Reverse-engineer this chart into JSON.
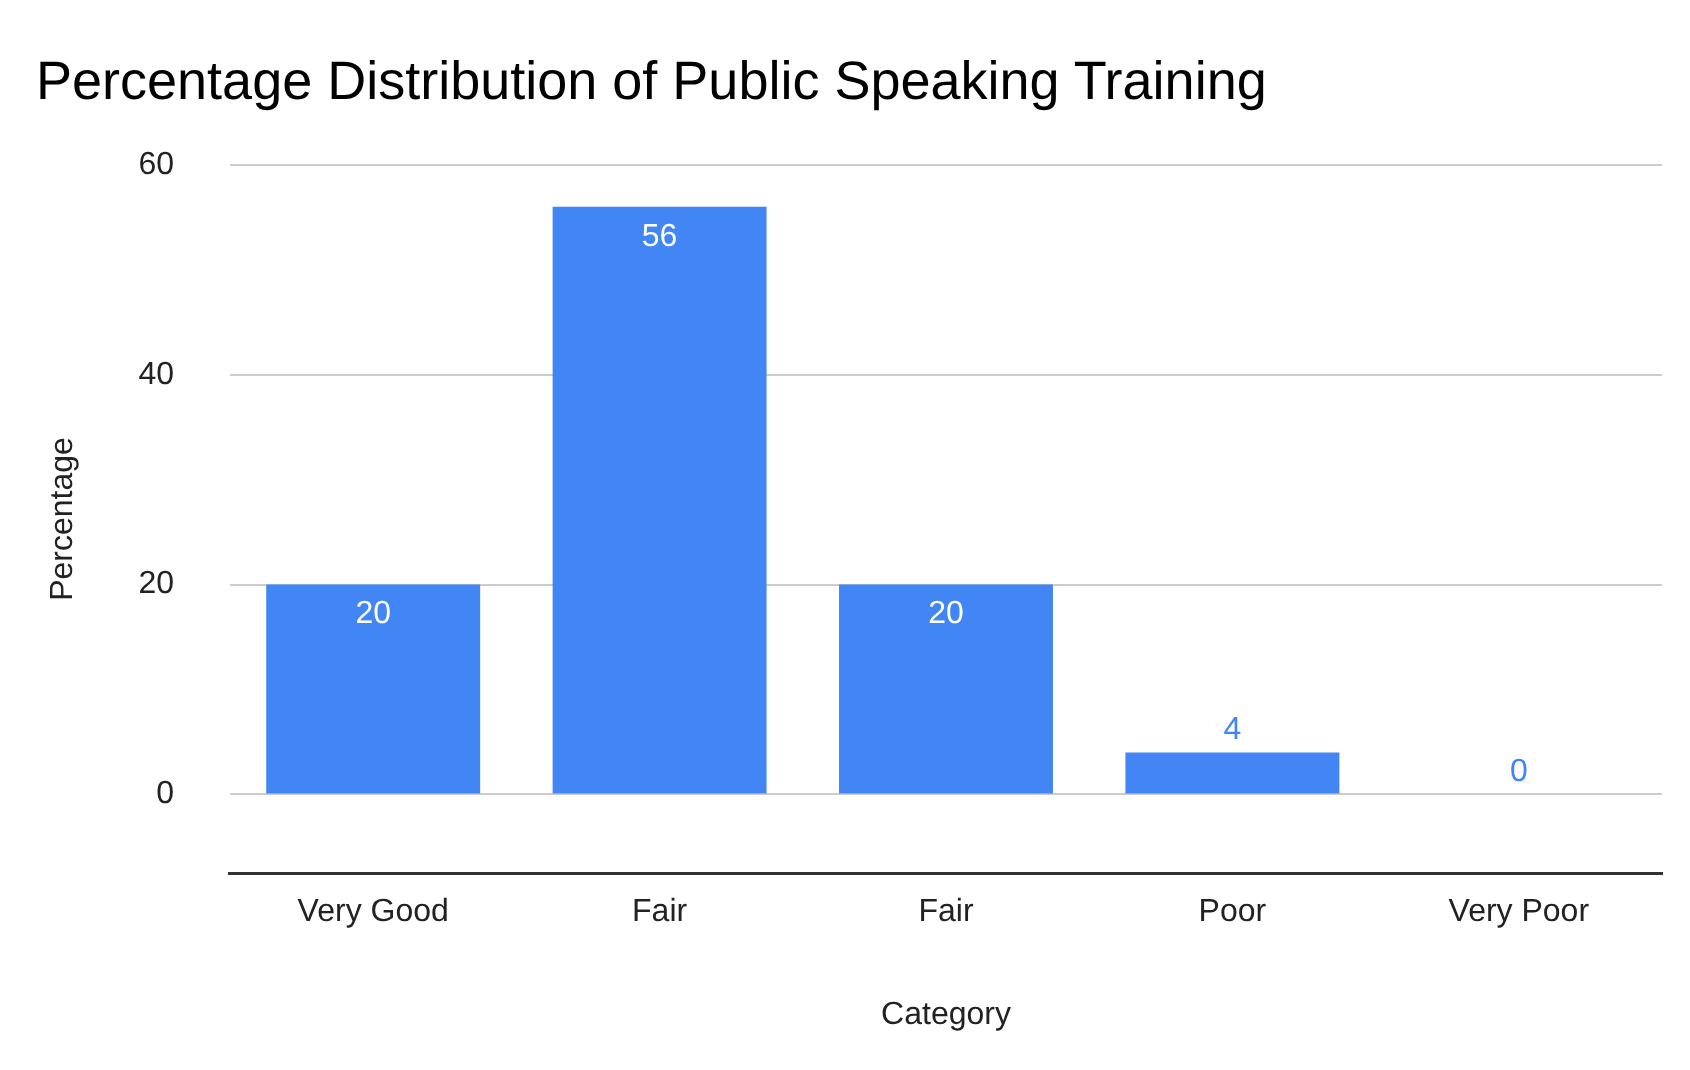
{
  "chart_data": {
    "type": "bar",
    "title": "Percentage Distribution of Public Speaking Training",
    "xlabel": "Category",
    "ylabel": "Percentage",
    "categories": [
      "Very Good",
      "Fair",
      "Fair",
      "Poor",
      "Very Poor"
    ],
    "values": [
      20,
      56,
      20,
      4,
      0
    ],
    "color": "#4285f4",
    "ylim": [
      -7.5,
      60
    ],
    "yticks": [
      0,
      20,
      40,
      60
    ],
    "grid": "y",
    "data_labels": true,
    "legend": false
  }
}
